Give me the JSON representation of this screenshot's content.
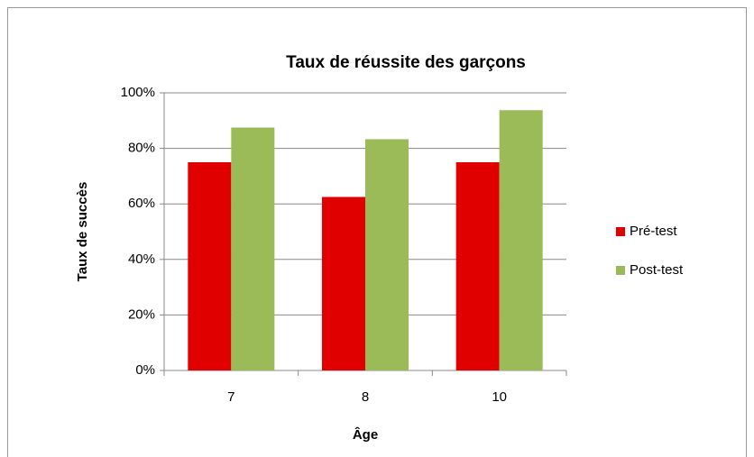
{
  "chart_data": {
    "type": "bar",
    "title": "Taux de réussite des garçons",
    "x_label": "Âge",
    "y_label": "Taux de succès",
    "categories": [
      "7",
      "8",
      "10"
    ],
    "series": [
      {
        "name": "Pré-test",
        "color": "#e00000",
        "values": [
          75,
          62.5,
          75
        ]
      },
      {
        "name": "Post-test",
        "color": "#9bbb59",
        "values": [
          87.5,
          83.3,
          93.75
        ]
      }
    ],
    "ylim": [
      0,
      100
    ],
    "yticks": [
      {
        "value": 0,
        "label": "0%"
      },
      {
        "value": 20,
        "label": "20%"
      },
      {
        "value": 40,
        "label": "40%"
      },
      {
        "value": 60,
        "label": "60%"
      },
      {
        "value": 80,
        "label": "80%"
      },
      {
        "value": 100,
        "label": "100%"
      }
    ],
    "grid": true,
    "legend": "right"
  }
}
